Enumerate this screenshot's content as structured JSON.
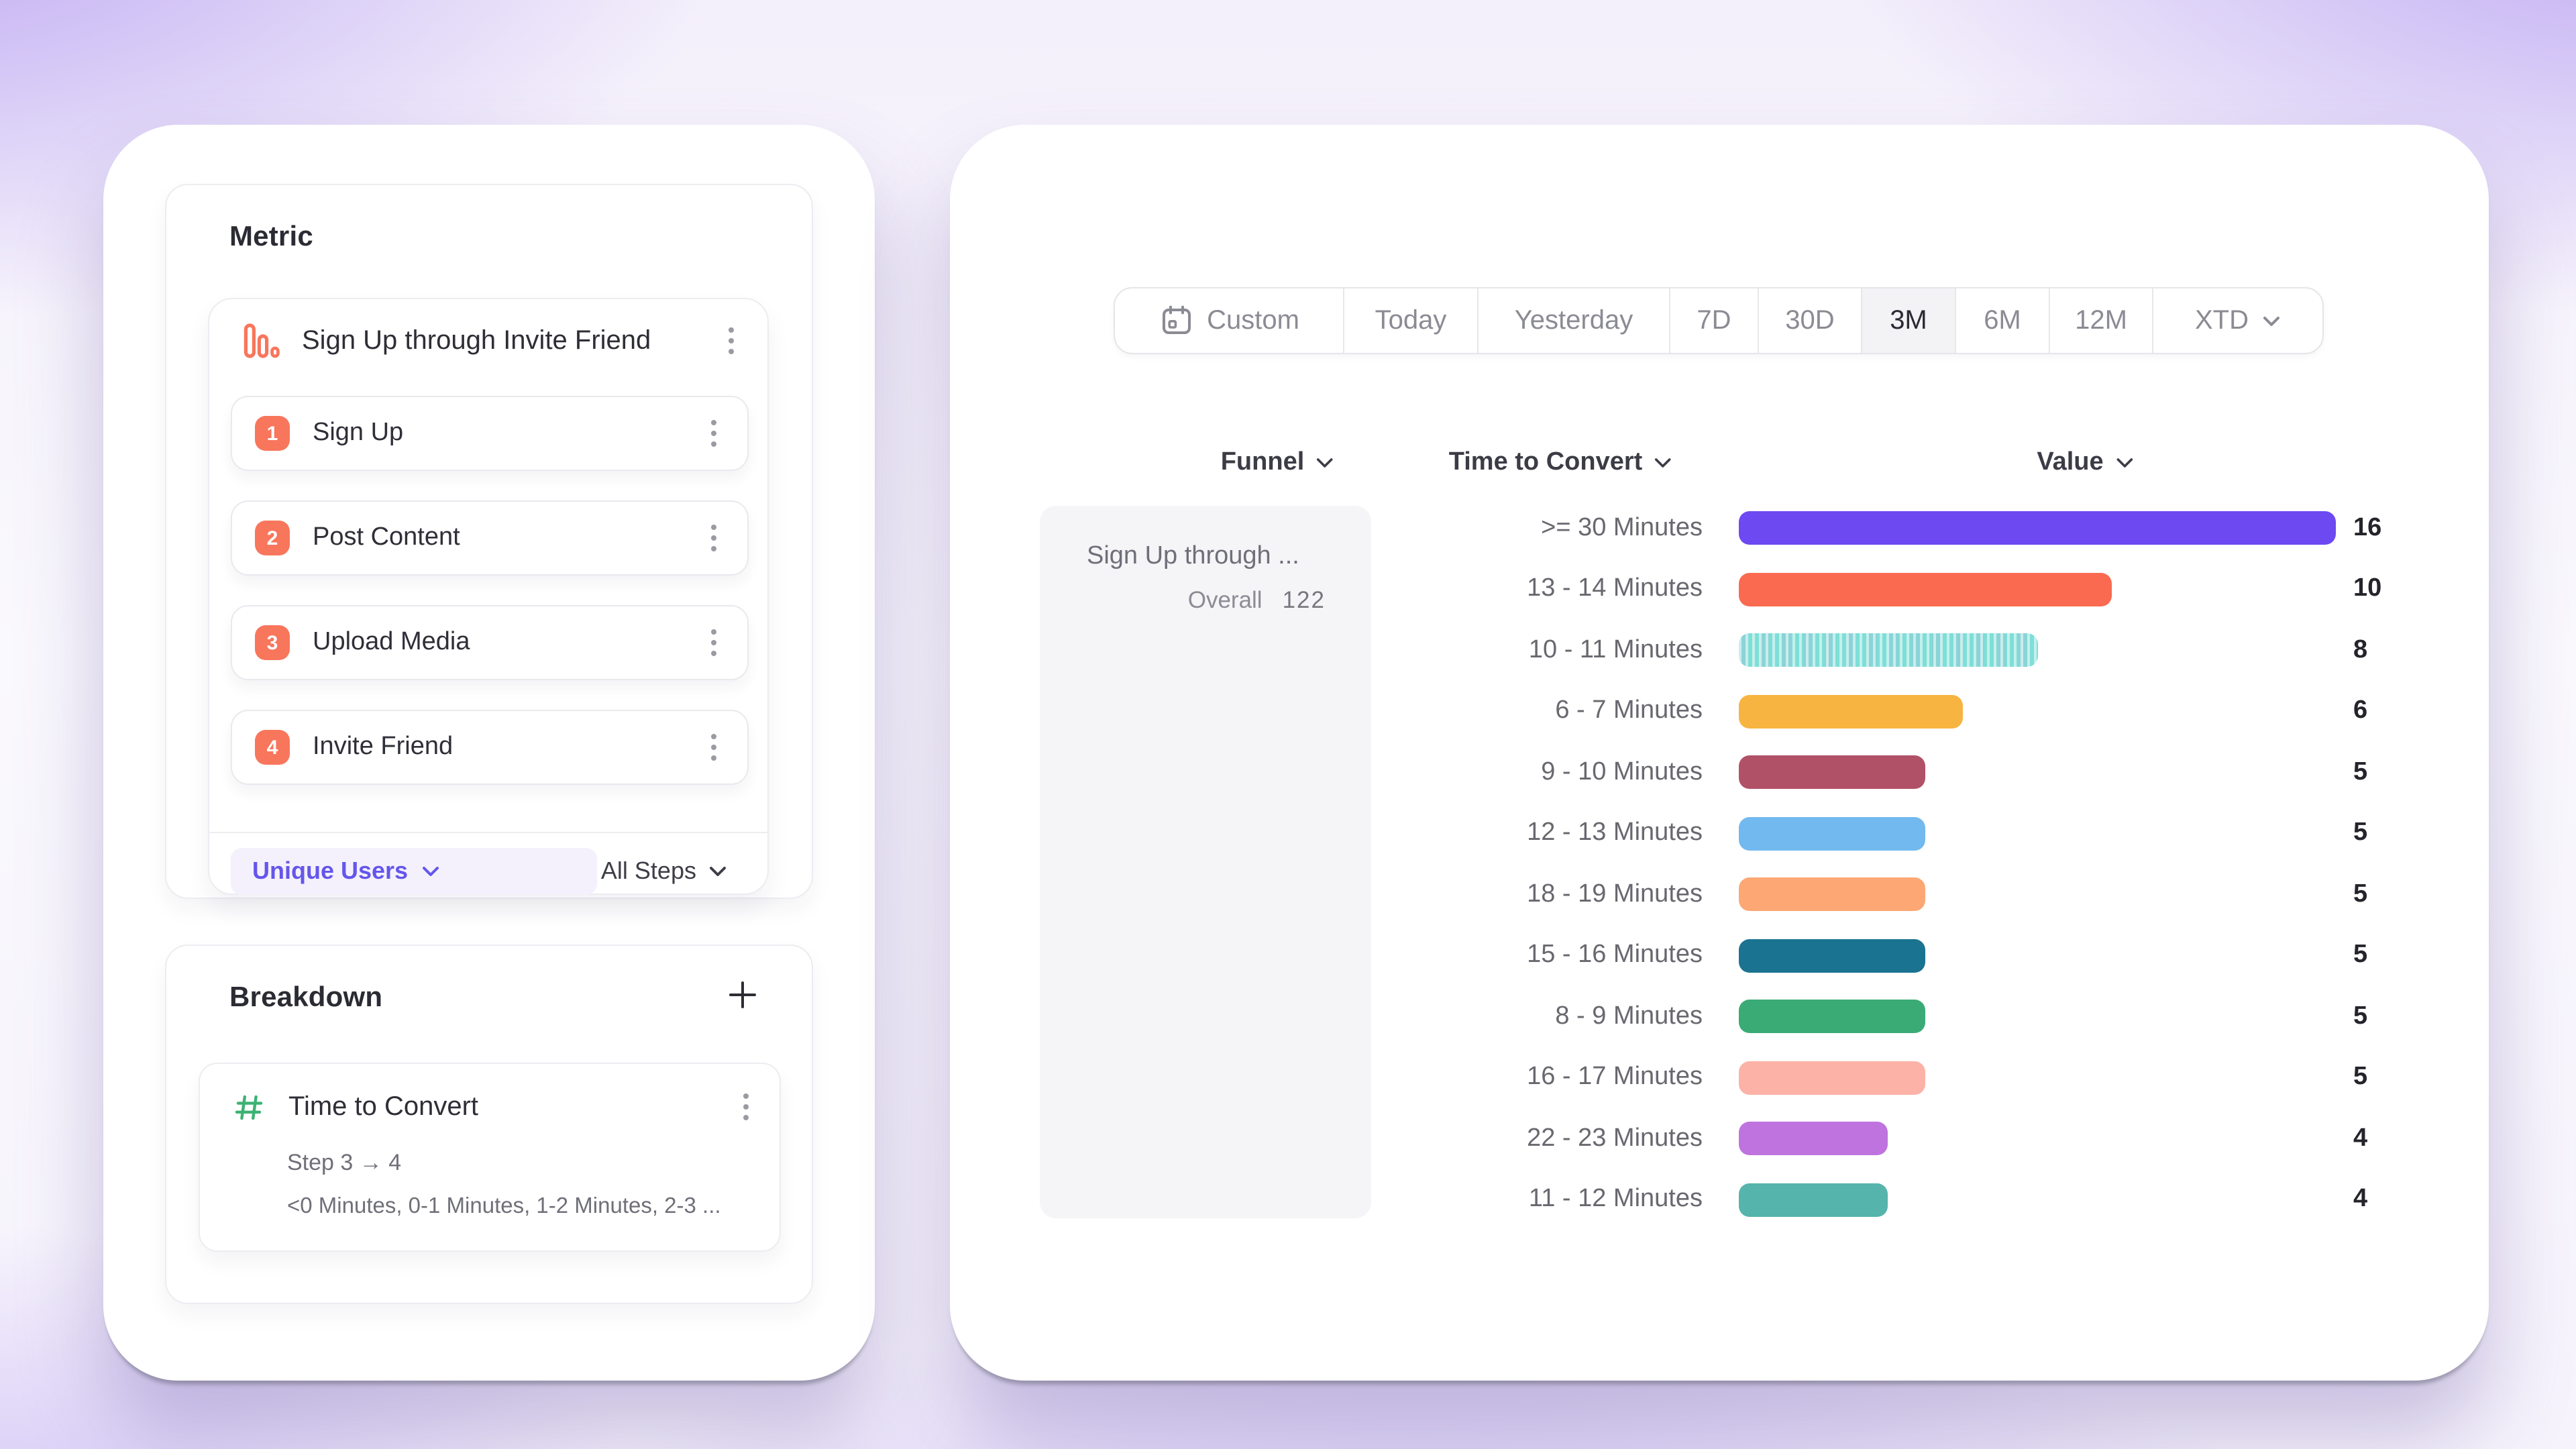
{
  "page": {
    "background_colors": [
      "#b299f0",
      "#faf9fd"
    ]
  },
  "left_panel": {
    "metric": {
      "title": "Metric",
      "funnel_title": "Sign Up through Invite Friend",
      "steps": [
        {
          "num": "1",
          "label": "Sign Up"
        },
        {
          "num": "2",
          "label": "Post Content"
        },
        {
          "num": "3",
          "label": "Upload Media"
        },
        {
          "num": "4",
          "label": "Invite Friend"
        }
      ],
      "measurement_label": "Unique Users",
      "steps_filter_label": "All Steps"
    },
    "breakdown": {
      "title": "Breakdown",
      "item": {
        "title": "Time to Convert",
        "subtitle": "Step 3 → 4",
        "buckets": "<0 Minutes, 0-1 Minutes, 1-2 Minutes, 2-3 ..."
      }
    }
  },
  "right_panel": {
    "date_range_tabs": [
      {
        "label": "Custom",
        "icon": "calendar-icon"
      },
      {
        "label": "Today"
      },
      {
        "label": "Yesterday"
      },
      {
        "label": "7D"
      },
      {
        "label": "30D"
      },
      {
        "label": "3M",
        "selected": true
      },
      {
        "label": "6M"
      },
      {
        "label": "12M"
      },
      {
        "label": "XTD",
        "chevron": true
      }
    ],
    "columns": {
      "funnel": "Funnel",
      "time_to_convert": "Time to Convert",
      "value": "Value"
    },
    "funnel_cell": {
      "title": "Sign Up through ...",
      "overall_label": "Overall",
      "overall_value": "122"
    }
  },
  "chart_data": {
    "type": "bar",
    "orientation": "horizontal",
    "categories": [
      ">= 30 Minutes",
      "13 - 14 Minutes",
      "10 - 11 Minutes",
      "6 - 7 Minutes",
      "9 - 10 Minutes",
      "12 - 13 Minutes",
      "18 - 19 Minutes",
      "15 - 16 Minutes",
      "8 - 9 Minutes",
      "16 - 17 Minutes",
      "22 - 23 Minutes",
      "11 - 12 Minutes"
    ],
    "values": [
      16,
      10,
      8,
      6,
      5,
      5,
      5,
      5,
      5,
      5,
      4,
      4
    ],
    "colors": [
      "#6D49F1",
      "#F96A50",
      "#7EDFD7",
      "#F7B440",
      "#B15168",
      "#72B9EF",
      "#FCA774",
      "#1A7390",
      "#3BAB76",
      "#FCB2A6",
      "#BE73DF",
      "#55B4AB"
    ],
    "textured_bar_index": 2,
    "xlim": [
      0,
      16
    ],
    "value_labels_shown": true,
    "grid": "off",
    "legend": "none"
  },
  "colors": {
    "accent_purple": "#6456EB",
    "pill_bg": "#F4F1FC",
    "step_badge": "#F8765C",
    "hash_green": "#3CB273",
    "selected_tab_bg": "#F3F3F6",
    "funnel_cell_bg": "#F5F4F7",
    "kebab_dot": "#9A9AA3"
  }
}
